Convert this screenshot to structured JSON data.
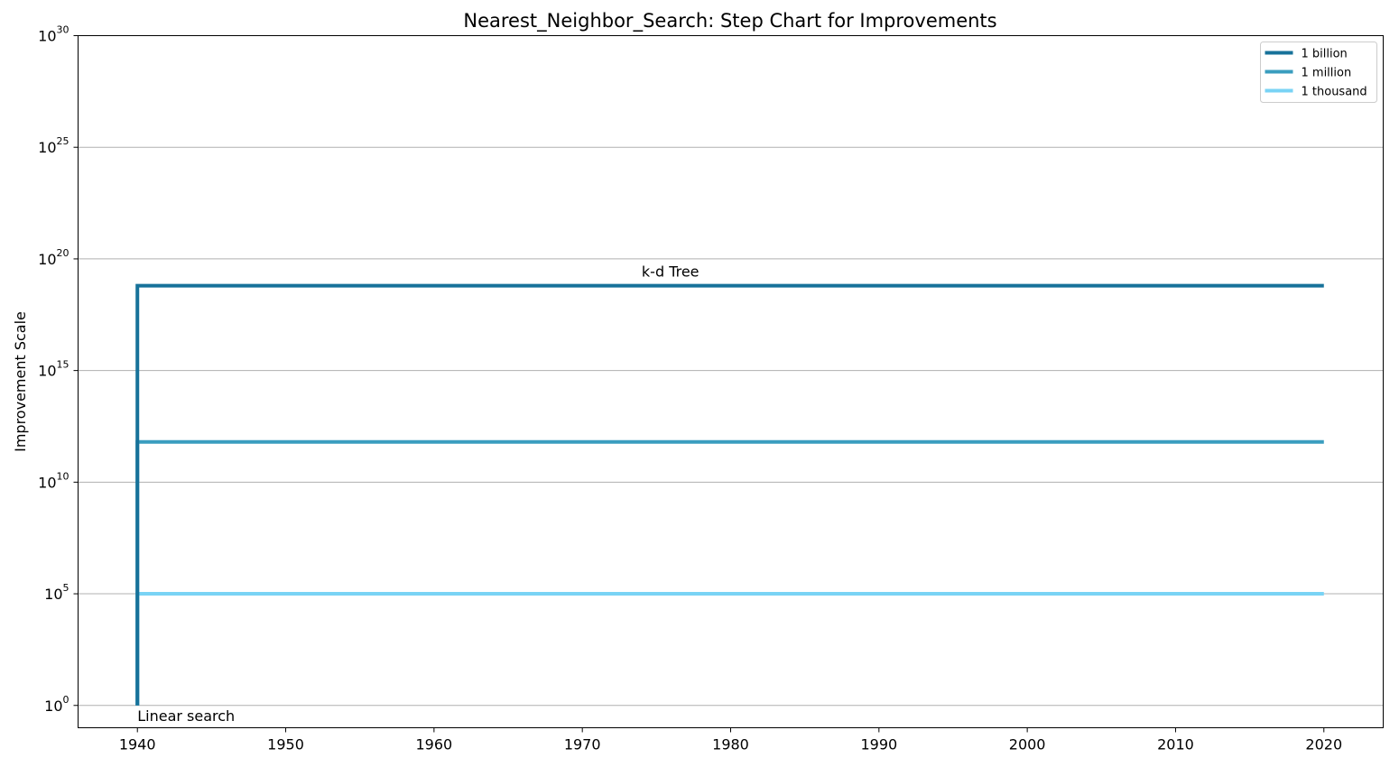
{
  "chart_data": {
    "type": "line",
    "step": true,
    "title": "Nearest_Neighbor_Search: Step Chart for Improvements",
    "xlabel": "",
    "ylabel": "Improvement Scale",
    "xlim": [
      1936,
      2024
    ],
    "ylim_exponent": [
      -1,
      30
    ],
    "yscale": "log",
    "grid": "horizontal",
    "legend_position": "top-right",
    "x_ticks": [
      1940,
      1950,
      1960,
      1970,
      1980,
      1990,
      2000,
      2010,
      2020
    ],
    "y_ticks": [
      {
        "base": "10",
        "exp": "0"
      },
      {
        "base": "10",
        "exp": "5"
      },
      {
        "base": "10",
        "exp": "10"
      },
      {
        "base": "10",
        "exp": "15"
      },
      {
        "base": "10",
        "exp": "20"
      },
      {
        "base": "10",
        "exp": "25"
      },
      {
        "base": "10",
        "exp": "30"
      }
    ],
    "series": [
      {
        "name": "1 billion",
        "color": "#17729a",
        "x": [
          1940,
          1940,
          2020
        ],
        "y_exponent": [
          0,
          18.8,
          18.8
        ]
      },
      {
        "name": "1 million",
        "color": "#3a9dbf",
        "x": [
          1940,
          1940,
          2020
        ],
        "y_exponent": [
          0,
          11.8,
          11.8
        ]
      },
      {
        "name": "1 thousand",
        "color": "#79d3f5",
        "x": [
          1940,
          1940,
          2020
        ],
        "y_exponent": [
          0,
          5,
          5
        ]
      }
    ],
    "annotations": [
      {
        "text": "k-d Tree",
        "x": 1974,
        "y_exponent": 19.2
      },
      {
        "text": "Linear search",
        "x": 1940,
        "y_exponent": -0.7
      }
    ]
  }
}
